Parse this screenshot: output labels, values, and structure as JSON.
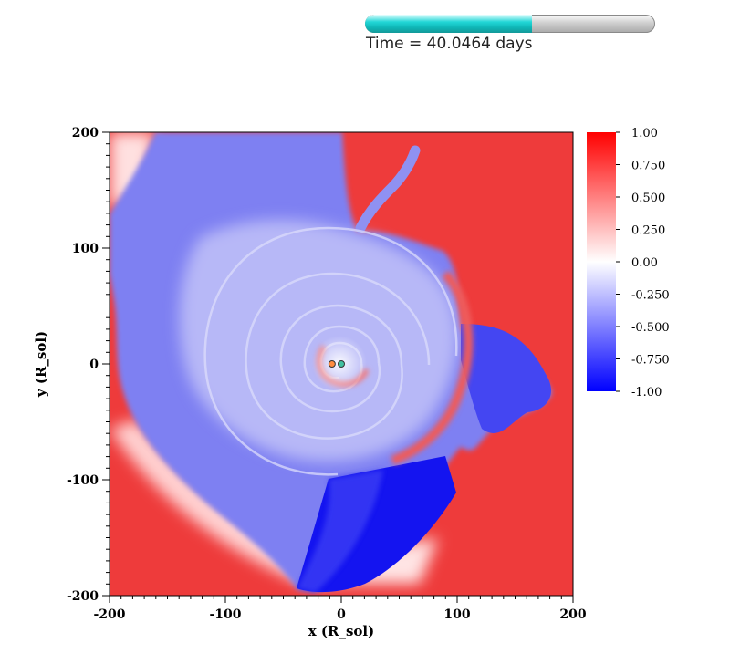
{
  "progress": {
    "fraction": 0.575,
    "fill_color": "#1fd0d0"
  },
  "time_label": "Time = 40.0464 days",
  "chart_data": {
    "type": "heatmap",
    "xlabel": "x (R_sol)",
    "ylabel": "y (R_sol)",
    "xlim": [
      -200,
      200
    ],
    "ylim": [
      -200,
      200
    ],
    "x_ticks": [
      "-200",
      "-100",
      "0",
      "100",
      "200"
    ],
    "y_ticks": [
      "-200",
      "-100",
      "0",
      "100",
      "200"
    ],
    "colormap": {
      "min_color": "#0000ff",
      "mid_color": "#ffffff",
      "max_color": "#ff0000"
    },
    "colorbar": {
      "range": [
        -1.0,
        1.0
      ],
      "tick_labels": [
        "1.00",
        "0.750",
        "0.500",
        "0.250",
        "0.00",
        "-0.250",
        "-0.500",
        "-0.750",
        "-1.00"
      ]
    },
    "markers": [
      {
        "name": "",
        "x": -8,
        "y": 0,
        "color": "#ff8c40"
      },
      {
        "name": "",
        "x": 0,
        "y": 0,
        "color": "#40c0a0"
      }
    ]
  }
}
